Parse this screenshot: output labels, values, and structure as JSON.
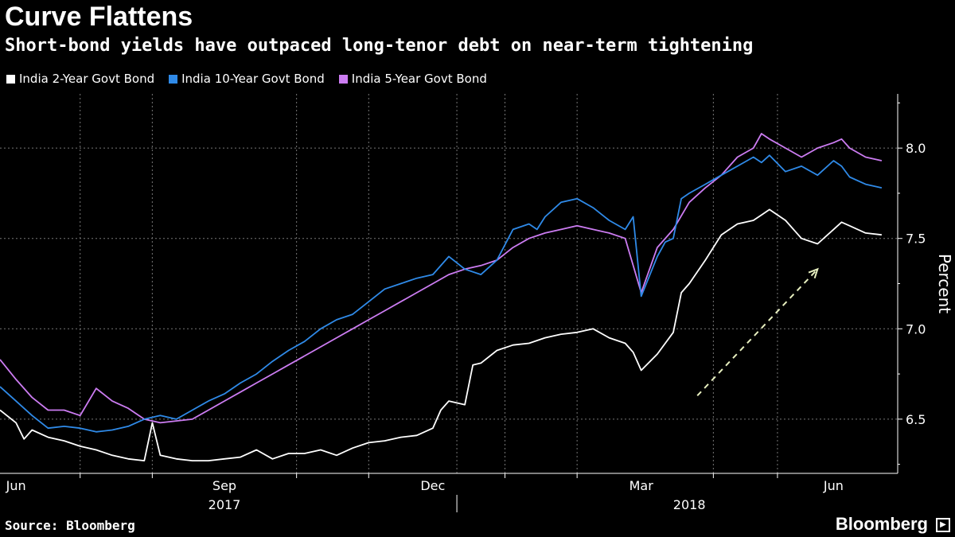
{
  "header": {
    "title": "Curve Flattens",
    "subtitle": "Short-bond yields have outpaced long-tenor debt on near-term tightening"
  },
  "footer": {
    "source": "Source: Bloomberg",
    "brand": "Bloomberg",
    "brand_box_icon": "terminal-icon"
  },
  "colors": {
    "background": "#000000",
    "two_year": "#ffffff",
    "ten_year": "#2f8ae8",
    "five_year": "#cc7cf2",
    "arrow": "#e8f0c0",
    "grid": "#777777"
  },
  "chart_data": {
    "type": "line",
    "title": "Curve Flattens",
    "subtitle": "Short-bond yields have outpaced long-tenor debt on near-term tightening",
    "ylabel": "Percent",
    "xlabel": "",
    "ylim": [
      6.2,
      8.3
    ],
    "xlim": [
      0,
      56
    ],
    "x_unit": "weeks since 2017-05-26",
    "y_ticks": [
      6.5,
      7.0,
      7.5,
      8.0
    ],
    "y_tick_labels": [
      "6.5",
      "7.0",
      "7.5",
      "8.0"
    ],
    "x_ticks": [
      {
        "x": 1,
        "label": "Jun"
      },
      {
        "x": 14,
        "label": "Sep"
      },
      {
        "x": 27,
        "label": "Dec"
      },
      {
        "x": 40,
        "label": "Mar"
      },
      {
        "x": 52,
        "label": "Jun"
      }
    ],
    "x_minor_ticks": [
      5,
      9.5,
      18.5,
      23,
      31.5,
      36,
      44.5,
      48.5
    ],
    "years": [
      {
        "x": 14,
        "label": "2017"
      },
      {
        "x": 43,
        "label": "2018"
      }
    ],
    "year_divider_x": 28.5,
    "legend_position": "top-left",
    "grid": true,
    "series": [
      {
        "name": "India 2-Year Govt Bond",
        "color": "#ffffff",
        "x": [
          0,
          1,
          1.5,
          2,
          3,
          4,
          5,
          6,
          7,
          8,
          9,
          9.5,
          10,
          11,
          12,
          13,
          14,
          15,
          16,
          17,
          18,
          19,
          20,
          21,
          22,
          23,
          24,
          25,
          26,
          27,
          27.5,
          28,
          29,
          29.5,
          30,
          31,
          32,
          33,
          34,
          35,
          36,
          37,
          38,
          39,
          39.5,
          40,
          41,
          42,
          42.5,
          43,
          44,
          45,
          46,
          47,
          47.5,
          48,
          49,
          50,
          51,
          52,
          52.5,
          53,
          54,
          55
        ],
        "values": [
          6.55,
          6.48,
          6.39,
          6.44,
          6.4,
          6.38,
          6.35,
          6.33,
          6.3,
          6.28,
          6.27,
          6.48,
          6.3,
          6.28,
          6.27,
          6.27,
          6.28,
          6.29,
          6.33,
          6.28,
          6.31,
          6.31,
          6.33,
          6.3,
          6.34,
          6.37,
          6.38,
          6.4,
          6.41,
          6.45,
          6.55,
          6.6,
          6.58,
          6.8,
          6.81,
          6.88,
          6.91,
          6.92,
          6.95,
          6.97,
          6.98,
          7.0,
          6.95,
          6.92,
          6.87,
          6.77,
          6.86,
          6.98,
          7.2,
          7.25,
          7.38,
          7.52,
          7.58,
          7.6,
          7.63,
          7.66,
          7.6,
          7.5,
          7.47,
          7.55,
          7.59,
          7.57,
          7.53,
          7.52
        ]
      },
      {
        "name": "India 10-Year Govt Bond",
        "color": "#2f8ae8",
        "x": [
          0,
          1,
          2,
          3,
          4,
          5,
          6,
          7,
          8,
          9,
          10,
          11,
          12,
          13,
          14,
          15,
          16,
          17,
          18,
          19,
          20,
          21,
          22,
          23,
          24,
          25,
          26,
          27,
          28,
          29,
          30,
          31,
          32,
          33,
          33.5,
          34,
          35,
          36,
          37,
          38,
          39,
          39.5,
          40,
          41,
          41.5,
          42,
          42.5,
          43,
          44,
          45,
          46,
          47,
          47.5,
          48,
          49,
          50,
          51,
          52,
          52.5,
          53,
          54,
          55
        ],
        "values": [
          6.68,
          6.6,
          6.52,
          6.45,
          6.46,
          6.45,
          6.43,
          6.44,
          6.46,
          6.5,
          6.52,
          6.5,
          6.55,
          6.6,
          6.64,
          6.7,
          6.75,
          6.82,
          6.88,
          6.93,
          7.0,
          7.05,
          7.08,
          7.15,
          7.22,
          7.25,
          7.28,
          7.3,
          7.4,
          7.33,
          7.3,
          7.38,
          7.55,
          7.58,
          7.55,
          7.62,
          7.7,
          7.72,
          7.67,
          7.6,
          7.55,
          7.62,
          7.18,
          7.4,
          7.48,
          7.5,
          7.72,
          7.75,
          7.8,
          7.85,
          7.9,
          7.95,
          7.92,
          7.96,
          7.87,
          7.9,
          7.85,
          7.93,
          7.9,
          7.84,
          7.8,
          7.78
        ]
      },
      {
        "name": "India 5-Year Govt Bond",
        "color": "#cc7cf2",
        "x": [
          0,
          1,
          2,
          3,
          4,
          5,
          6,
          7,
          8,
          9,
          10,
          11,
          12,
          13,
          14,
          15,
          16,
          17,
          18,
          19,
          20,
          21,
          22,
          23,
          24,
          25,
          26,
          27,
          28,
          29,
          30,
          31,
          32,
          33,
          34,
          35,
          36,
          37,
          38,
          39,
          40,
          41,
          42,
          43,
          44,
          45,
          46,
          47,
          47.5,
          48,
          49,
          50,
          51,
          52,
          52.5,
          53,
          54,
          55
        ],
        "values": [
          6.83,
          6.72,
          6.62,
          6.55,
          6.55,
          6.52,
          6.67,
          6.6,
          6.56,
          6.5,
          6.48,
          6.49,
          6.5,
          6.55,
          6.6,
          6.65,
          6.7,
          6.75,
          6.8,
          6.85,
          6.9,
          6.95,
          7.0,
          7.05,
          7.1,
          7.15,
          7.2,
          7.25,
          7.3,
          7.33,
          7.35,
          7.38,
          7.45,
          7.5,
          7.53,
          7.55,
          7.57,
          7.55,
          7.53,
          7.5,
          7.2,
          7.45,
          7.55,
          7.7,
          7.78,
          7.85,
          7.95,
          8.0,
          8.08,
          8.05,
          8.0,
          7.95,
          8.0,
          8.03,
          8.05,
          8.0,
          7.95,
          7.93
        ]
      }
    ],
    "annotations": [
      {
        "type": "dashed-arrow",
        "from": [
          43.5,
          6.63
        ],
        "to": [
          51,
          7.33
        ]
      }
    ]
  }
}
